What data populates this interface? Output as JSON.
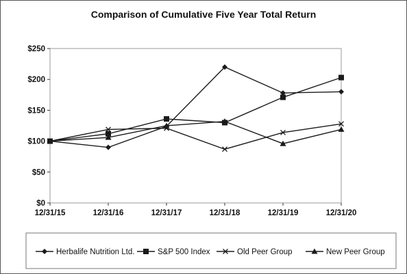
{
  "chart_data": {
    "type": "line",
    "title": "Comparison of Cumulative Five Year Total Return",
    "categories": [
      "12/31/15",
      "12/31/16",
      "12/31/17",
      "12/31/18",
      "12/31/19",
      "12/31/20"
    ],
    "y_ticks": [
      "$0",
      "$50",
      "$100",
      "$150",
      "$200",
      "$250"
    ],
    "ylim": [
      0,
      250
    ],
    "ylabel": "",
    "xlabel": "",
    "grid": false,
    "legend_position": "bottom",
    "series": [
      {
        "name": "Herbalife Nutrition Ltd.",
        "marker": "diamond",
        "values": [
          100,
          90,
          124,
          220,
          178,
          180
        ]
      },
      {
        "name": "S&P 500 Index",
        "marker": "square",
        "values": [
          100,
          112,
          136,
          130,
          171,
          203
        ]
      },
      {
        "name": "Old Peer Group",
        "marker": "x",
        "values": [
          100,
          119,
          121,
          87,
          114,
          128
        ]
      },
      {
        "name": "New Peer Group",
        "marker": "triangle",
        "values": [
          100,
          106,
          125,
          132,
          96,
          119
        ]
      }
    ],
    "line_color": "#1a1a1a"
  }
}
